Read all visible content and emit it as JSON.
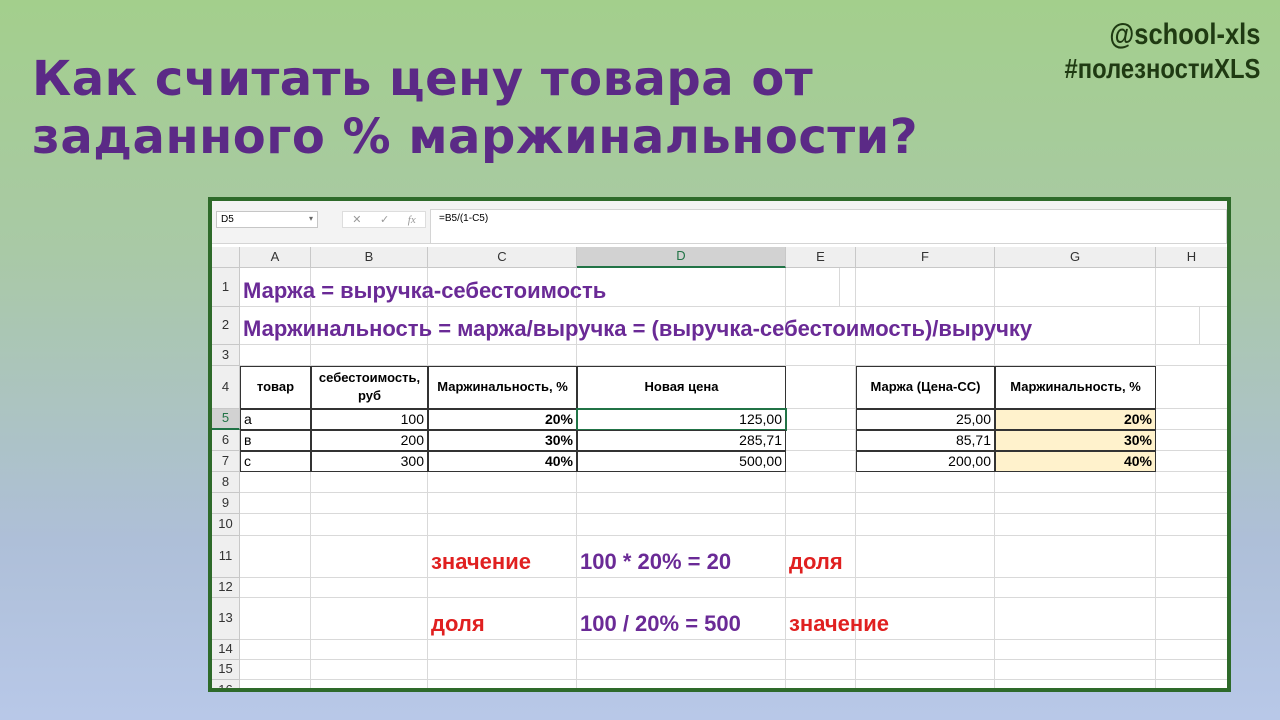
{
  "title_lines": [
    "Как считать цену товара от",
    "заданного % маржинальности?"
  ],
  "brand": {
    "handle": "@school-xls",
    "hashtag": "#полезностиXLS"
  },
  "formula_bar": {
    "name_box": "D5",
    "formula": "=B5/(1-C5)",
    "fx_label": "fx"
  },
  "columns": [
    "A",
    "B",
    "C",
    "D",
    "E",
    "F",
    "G",
    "H"
  ],
  "selected_column": "D",
  "rows": [
    "1",
    "2",
    "3",
    "4",
    "5",
    "6",
    "7",
    "8",
    "9",
    "10",
    "11",
    "12",
    "13",
    "14",
    "15",
    "16"
  ],
  "selected_row": "5",
  "row1": "Маржа = выручка-себестоимость",
  "row2": "Маржинальность = маржа/выручка = (выручка-себестоимость)/выручку",
  "table_headers": [
    "товар",
    "себестоимость, руб",
    "Маржинальность, %",
    "Новая цена"
  ],
  "table_rows": [
    {
      "item": "а",
      "cost": "100",
      "margin_pct": "20%",
      "new_price": "125,00"
    },
    {
      "item": "в",
      "cost": "200",
      "margin_pct": "30%",
      "new_price": "285,71"
    },
    {
      "item": "с",
      "cost": "300",
      "margin_pct": "40%",
      "new_price": "500,00"
    }
  ],
  "check_headers": [
    "Маржа (Цена-СС)",
    "Маржинальность, %"
  ],
  "check_rows": [
    {
      "margin": "25,00",
      "margin_pct": "20%"
    },
    {
      "margin": "85,71",
      "margin_pct": "30%"
    },
    {
      "margin": "200,00",
      "margin_pct": "40%"
    }
  ],
  "row11": {
    "label": "значение",
    "expr": "100 * 20% = 20",
    "result": "доля"
  },
  "row13": {
    "label": "доля",
    "expr": "100 / 20% = 500",
    "result": "значение"
  },
  "colors": {
    "title": "#5b2a86",
    "accent_red": "#e02020",
    "frame": "#2e6a2a",
    "highlight": "#fff2cc"
  }
}
